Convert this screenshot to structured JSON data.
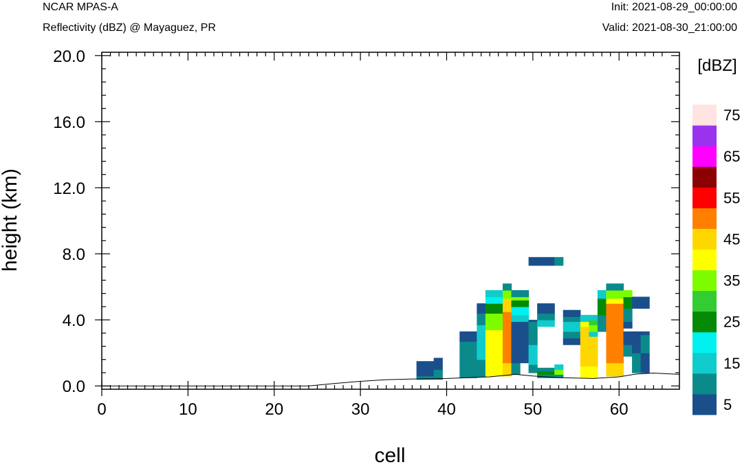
{
  "header": {
    "model": "NCAR MPAS-A",
    "field": "Reflectivity (dBZ) @ Mayaguez, PR",
    "init": "Init: 2021-08-29_00:00:00",
    "valid": "Valid: 2021-08-30_21:00:00"
  },
  "chart_data": {
    "type": "heatmap",
    "title": "Reflectivity (dBZ) @ Mayaguez, PR",
    "xlabel": "cell",
    "ylabel": "height (km)",
    "xlim": [
      0,
      67
    ],
    "ylim": [
      -0.2,
      20.2
    ],
    "xticks": [
      0,
      10,
      20,
      30,
      40,
      50,
      60
    ],
    "xtick_labels": [
      "0",
      "10",
      "20",
      "30",
      "40",
      "50",
      "60"
    ],
    "yticks": [
      0,
      4,
      8,
      12,
      16,
      20
    ],
    "ytick_labels": [
      "0.0",
      "4.0",
      "8.0",
      "12.0",
      "16.0",
      "20.0"
    ],
    "colorbar": {
      "unit": "[dBZ]",
      "levels": [
        5,
        10,
        15,
        20,
        25,
        30,
        35,
        40,
        45,
        50,
        55,
        60,
        65,
        70,
        75
      ],
      "colors": [
        "#1a4f8c",
        "#0b8a8c",
        "#10cccc",
        "#00f0f0",
        "#058a05",
        "#33cc33",
        "#7dfc00",
        "#ffff00",
        "#ffd700",
        "#ff8000",
        "#ff0000",
        "#8b0000",
        "#ff00ff",
        "#9933ee",
        "#ffe4e1"
      ],
      "labels": [
        "5",
        "15",
        "25",
        "35",
        "45",
        "55",
        "65",
        "75"
      ]
    },
    "terrain": [
      [
        0,
        0
      ],
      [
        24,
        0
      ],
      [
        27,
        0.15
      ],
      [
        30,
        0.28
      ],
      [
        33,
        0.38
      ],
      [
        36,
        0.42
      ],
      [
        40,
        0.45
      ],
      [
        45,
        0.55
      ],
      [
        48,
        0.7
      ],
      [
        50,
        0.6
      ],
      [
        53,
        0.5
      ],
      [
        57,
        0.45
      ],
      [
        60,
        0.55
      ],
      [
        62,
        0.72
      ],
      [
        64,
        0.78
      ],
      [
        67,
        0.7
      ]
    ],
    "cells": [
      {
        "x": 37,
        "cols": [
          [
            0.4,
            0.6,
            10
          ],
          [
            0.6,
            1.5,
            5
          ]
        ]
      },
      {
        "x": 38,
        "cols": [
          [
            0.4,
            0.6,
            10
          ],
          [
            0.6,
            1.5,
            5
          ]
        ]
      },
      {
        "x": 39,
        "cols": [
          [
            0.4,
            1.0,
            10
          ],
          [
            1.0,
            1.7,
            5
          ]
        ]
      },
      {
        "x": 42,
        "cols": [
          [
            0.5,
            2.7,
            10
          ],
          [
            2.7,
            3.3,
            5
          ]
        ]
      },
      {
        "x": 43,
        "cols": [
          [
            0.5,
            2.7,
            10
          ],
          [
            2.7,
            3.3,
            5
          ]
        ]
      },
      {
        "x": 44,
        "cols": [
          [
            0.55,
            1.6,
            10
          ],
          [
            1.6,
            3.7,
            15
          ],
          [
            3.7,
            4.4,
            10
          ],
          [
            4.4,
            5.0,
            5
          ]
        ]
      },
      {
        "x": 45,
        "cols": [
          [
            0.6,
            3.4,
            40
          ],
          [
            3.4,
            4.4,
            35
          ],
          [
            4.4,
            5.0,
            25
          ],
          [
            5.0,
            5.4,
            20
          ],
          [
            5.4,
            5.8,
            15
          ]
        ]
      },
      {
        "x": 46,
        "cols": [
          [
            0.6,
            3.4,
            40
          ],
          [
            3.4,
            4.4,
            35
          ],
          [
            4.4,
            5.0,
            25
          ],
          [
            5.0,
            5.4,
            20
          ],
          [
            5.4,
            5.8,
            15
          ]
        ]
      },
      {
        "x": 47,
        "cols": [
          [
            0.6,
            1.4,
            45
          ],
          [
            1.4,
            4.5,
            50
          ],
          [
            4.5,
            5.3,
            45
          ],
          [
            5.3,
            5.8,
            35
          ],
          [
            5.8,
            6.2,
            10
          ]
        ]
      },
      {
        "x": 48,
        "cols": [
          [
            0.7,
            1.4,
            10
          ],
          [
            1.4,
            2.3,
            5
          ],
          [
            2.3,
            3.9,
            5
          ],
          [
            3.9,
            4.3,
            15
          ],
          [
            4.3,
            4.8,
            20
          ],
          [
            4.8,
            5.2,
            25
          ],
          [
            5.2,
            5.4,
            35
          ],
          [
            5.4,
            5.8,
            10
          ]
        ]
      },
      {
        "x": 49,
        "cols": [
          [
            1.4,
            2.3,
            5
          ],
          [
            2.3,
            3.9,
            5
          ],
          [
            3.9,
            4.3,
            15
          ],
          [
            4.3,
            4.8,
            20
          ],
          [
            4.8,
            5.2,
            25
          ],
          [
            5.2,
            5.4,
            35
          ],
          [
            5.4,
            5.8,
            10
          ]
        ]
      },
      {
        "x": 50,
        "cols": [
          [
            0.8,
            1.3,
            10
          ],
          [
            1.3,
            2.5,
            15
          ],
          [
            2.5,
            3.5,
            10
          ],
          [
            3.5,
            3.9,
            10
          ],
          [
            3.9,
            4.0,
            5
          ],
          [
            7.3,
            7.8,
            5
          ]
        ]
      },
      {
        "x": 51,
        "cols": [
          [
            0.5,
            0.7,
            10
          ],
          [
            0.7,
            0.9,
            25
          ],
          [
            0.9,
            1.1,
            10
          ],
          [
            3.6,
            4.0,
            15
          ],
          [
            4.0,
            4.4,
            10
          ],
          [
            4.4,
            5.0,
            5
          ],
          [
            7.3,
            7.8,
            5
          ]
        ]
      },
      {
        "x": 52,
        "cols": [
          [
            0.5,
            0.7,
            10
          ],
          [
            0.7,
            0.9,
            25
          ],
          [
            0.9,
            1.1,
            10
          ],
          [
            3.6,
            4.0,
            15
          ],
          [
            4.0,
            4.4,
            10
          ],
          [
            4.4,
            5.0,
            5
          ],
          [
            7.3,
            7.8,
            5
          ]
        ]
      },
      {
        "x": 53,
        "cols": [
          [
            0.5,
            0.7,
            10
          ],
          [
            0.7,
            1.0,
            35
          ],
          [
            1.0,
            1.3,
            15
          ],
          [
            7.3,
            7.8,
            10
          ]
        ]
      },
      {
        "x": 54,
        "cols": [
          [
            2.5,
            2.9,
            5
          ],
          [
            2.9,
            3.3,
            10
          ],
          [
            3.3,
            3.9,
            15
          ],
          [
            3.9,
            4.2,
            10
          ],
          [
            4.2,
            4.6,
            5
          ]
        ]
      },
      {
        "x": 55,
        "cols": [
          [
            2.5,
            2.9,
            5
          ],
          [
            2.9,
            3.3,
            10
          ],
          [
            3.3,
            3.9,
            15
          ],
          [
            3.9,
            4.2,
            10
          ],
          [
            4.2,
            4.6,
            5
          ]
        ]
      },
      {
        "x": 56,
        "cols": [
          [
            0.5,
            1.2,
            40
          ],
          [
            1.2,
            3.6,
            45
          ],
          [
            3.6,
            3.9,
            40
          ],
          [
            3.9,
            4.3,
            15
          ]
        ]
      },
      {
        "x": 57,
        "cols": [
          [
            0.5,
            1.2,
            40
          ],
          [
            1.2,
            3.0,
            45
          ],
          [
            3.0,
            3.3,
            15
          ],
          [
            3.3,
            3.7,
            35
          ],
          [
            3.7,
            4.0,
            30
          ],
          [
            4.0,
            4.3,
            15
          ]
        ]
      },
      {
        "x": 58,
        "cols": [
          [
            3.3,
            4.3,
            10
          ],
          [
            4.3,
            5.3,
            25
          ],
          [
            5.3,
            5.8,
            15
          ]
        ]
      },
      {
        "x": 59,
        "cols": [
          [
            0.6,
            1.4,
            45
          ],
          [
            1.4,
            5.0,
            50
          ],
          [
            5.0,
            5.3,
            40
          ],
          [
            5.3,
            5.8,
            35
          ],
          [
            5.8,
            6.2,
            10
          ]
        ]
      },
      {
        "x": 60,
        "cols": [
          [
            0.6,
            1.4,
            45
          ],
          [
            1.4,
            5.0,
            50
          ],
          [
            5.0,
            5.3,
            40
          ],
          [
            5.3,
            5.8,
            35
          ],
          [
            5.8,
            6.2,
            10
          ]
        ]
      },
      {
        "x": 61,
        "cols": [
          [
            1.8,
            2.5,
            10
          ],
          [
            2.5,
            3.3,
            5
          ],
          [
            3.5,
            3.9,
            5
          ],
          [
            3.9,
            4.7,
            10
          ],
          [
            4.7,
            5.4,
            25
          ],
          [
            5.4,
            5.8,
            35
          ]
        ]
      },
      {
        "x": 62,
        "cols": [
          [
            0.8,
            2.0,
            10
          ],
          [
            2.0,
            3.1,
            5
          ],
          [
            3.1,
            3.3,
            5
          ],
          [
            4.7,
            5.4,
            5
          ]
        ]
      },
      {
        "x": 63,
        "cols": [
          [
            0.8,
            2.0,
            5
          ],
          [
            2.0,
            3.1,
            10
          ],
          [
            3.1,
            3.3,
            5
          ],
          [
            4.7,
            5.4,
            5
          ]
        ]
      }
    ]
  }
}
